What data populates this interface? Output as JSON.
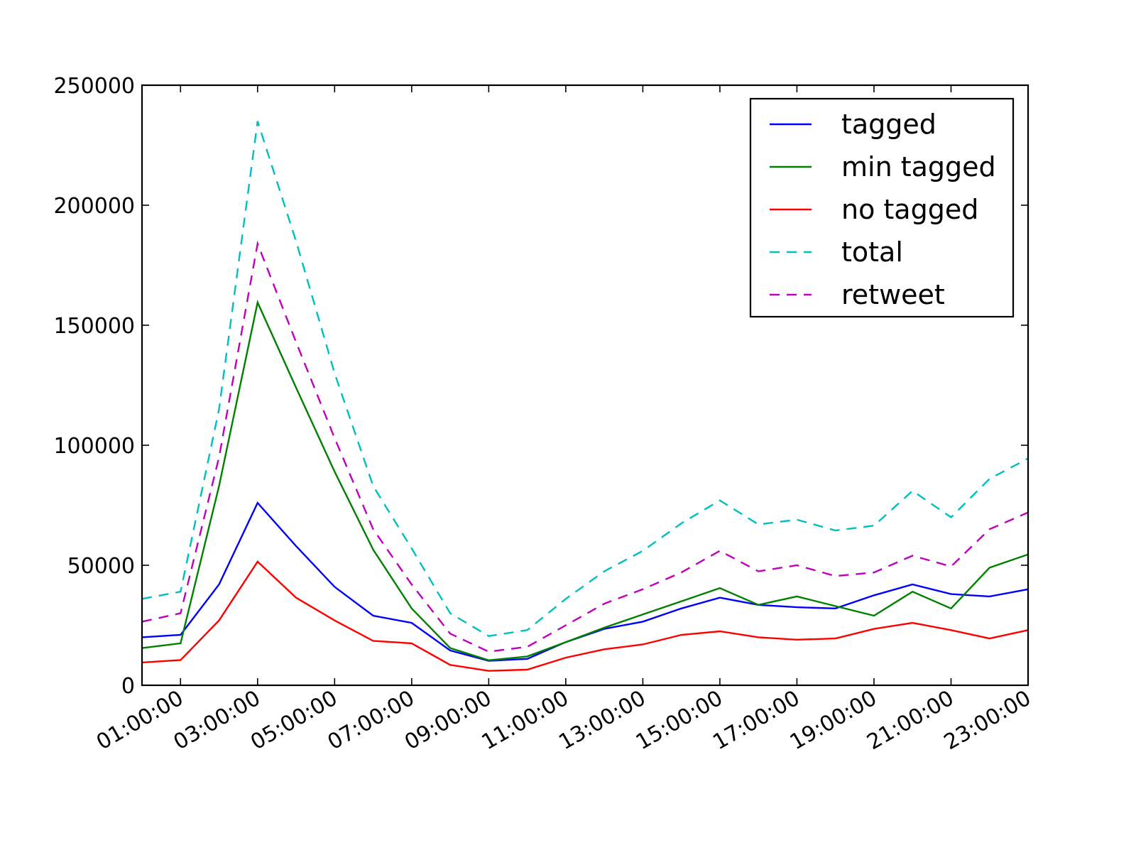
{
  "chart_data": {
    "type": "line",
    "title": "",
    "xlabel": "",
    "ylabel": "",
    "x": [
      "00:00:00",
      "01:00:00",
      "02:00:00",
      "03:00:00",
      "04:00:00",
      "05:00:00",
      "06:00:00",
      "07:00:00",
      "08:00:00",
      "09:00:00",
      "10:00:00",
      "11:00:00",
      "12:00:00",
      "13:00:00",
      "14:00:00",
      "15:00:00",
      "16:00:00",
      "17:00:00",
      "18:00:00",
      "19:00:00",
      "20:00:00",
      "21:00:00",
      "22:00:00",
      "23:00:00"
    ],
    "xticks": [
      "01:00:00",
      "03:00:00",
      "05:00:00",
      "07:00:00",
      "09:00:00",
      "11:00:00",
      "13:00:00",
      "15:00:00",
      "17:00:00",
      "19:00:00",
      "21:00:00",
      "23:00:00"
    ],
    "yticks": [
      "0",
      "50000",
      "100000",
      "150000",
      "200000",
      "250000"
    ],
    "ylim": [
      0,
      250000
    ],
    "grid": false,
    "legend_position": "top-right",
    "series": [
      {
        "name": "tagged",
        "color": "#0000ff",
        "style": "solid",
        "values": [
          20000,
          21000,
          42000,
          76000,
          58000,
          41000,
          29000,
          26000,
          14500,
          10200,
          11000,
          18000,
          23500,
          26500,
          32000,
          36500,
          33500,
          32500,
          32000,
          37500,
          42000,
          38000,
          37000,
          40000
        ]
      },
      {
        "name": "min tagged",
        "color": "#008000",
        "style": "solid",
        "values": [
          15500,
          17500,
          83000,
          159500,
          124000,
          89000,
          56500,
          32000,
          15500,
          10400,
          12000,
          18000,
          24000,
          29500,
          35000,
          40500,
          33500,
          37000,
          33000,
          29000,
          39000,
          32000,
          49000,
          54500
        ]
      },
      {
        "name": "no tagged",
        "color": "#ff0000",
        "style": "solid",
        "values": [
          9500,
          10500,
          27000,
          51500,
          36500,
          27000,
          18500,
          17500,
          8500,
          6000,
          6500,
          11500,
          15000,
          17000,
          21000,
          22500,
          20000,
          19000,
          19500,
          23500,
          26000,
          23000,
          19500,
          23000
        ]
      },
      {
        "name": "total",
        "color": "#00bfbf",
        "style": "dashed",
        "values": [
          36000,
          39000,
          115000,
          235000,
          185000,
          130000,
          83000,
          57000,
          30000,
          20500,
          23000,
          36000,
          47500,
          56000,
          67500,
          77000,
          67000,
          69000,
          64500,
          66500,
          81000,
          70000,
          86000,
          94500
        ]
      },
      {
        "name": "retweet",
        "color": "#bf00bf",
        "style": "dashed",
        "values": [
          26500,
          30000,
          95000,
          184000,
          143000,
          103000,
          65000,
          42000,
          21500,
          14000,
          16000,
          25000,
          34000,
          40000,
          47000,
          56000,
          47500,
          50000,
          45500,
          47000,
          54000,
          49500,
          65000,
          72000
        ]
      }
    ]
  }
}
